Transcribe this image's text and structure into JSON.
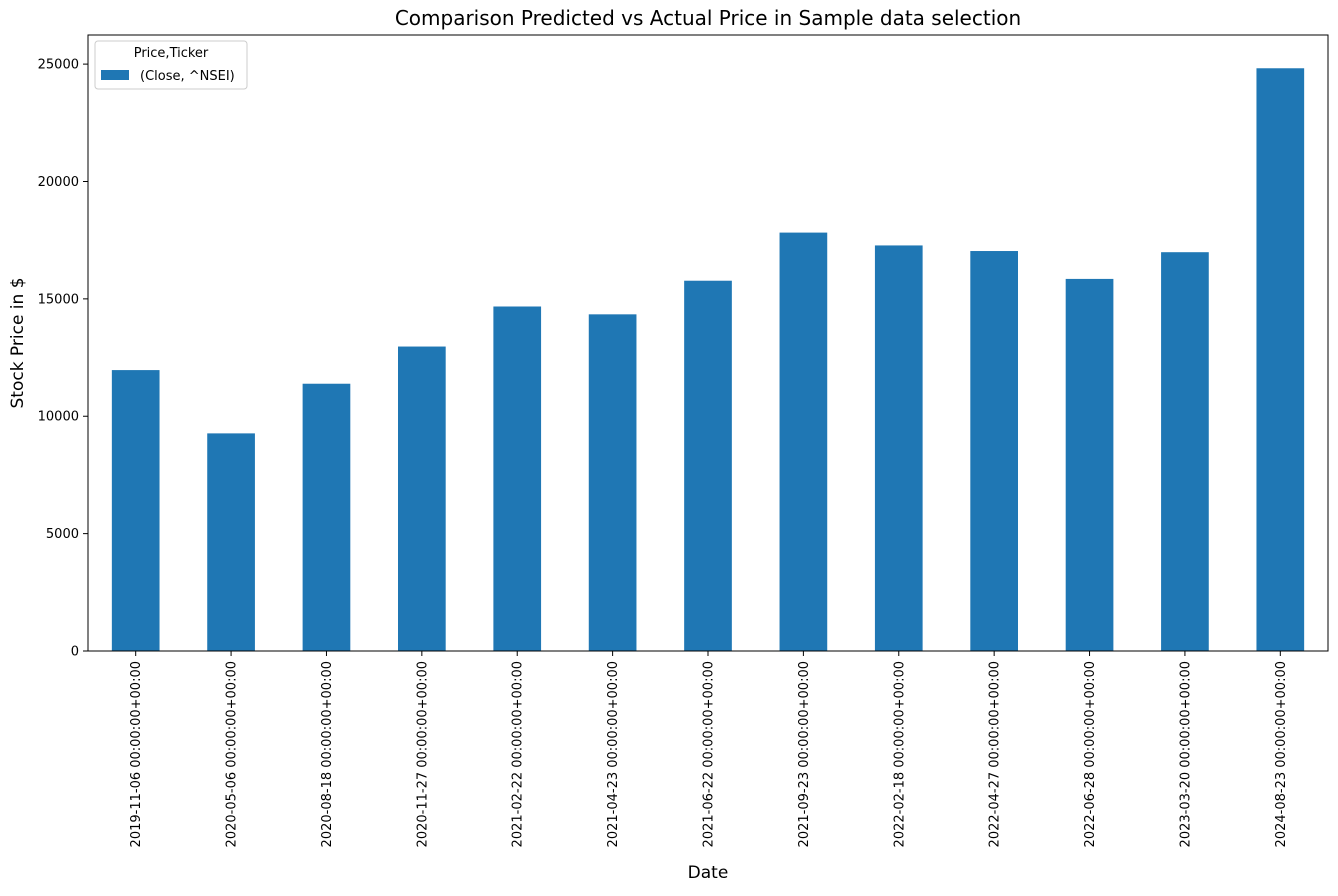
{
  "chart_data": {
    "type": "bar",
    "title": "Comparison Predicted vs Actual Price in Sample data selection",
    "xlabel": "Date",
    "ylabel": "Stock Price in $",
    "categories": [
      "2019-11-06 00:00:00+00:00",
      "2020-05-06 00:00:00+00:00",
      "2020-08-18 00:00:00+00:00",
      "2020-11-27 00:00:00+00:00",
      "2021-02-22 00:00:00+00:00",
      "2021-04-23 00:00:00+00:00",
      "2021-06-22 00:00:00+00:00",
      "2021-09-23 00:00:00+00:00",
      "2022-02-18 00:00:00+00:00",
      "2022-04-27 00:00:00+00:00",
      "2022-06-28 00:00:00+00:00",
      "2023-03-20 00:00:00+00:00",
      "2024-08-23 00:00:00+00:00"
    ],
    "series": [
      {
        "name": "(Close, ^NSEI)",
        "color": "#1f77b4",
        "values": [
          11966,
          9270,
          11385,
          12969,
          14675,
          14341,
          15773,
          17823,
          17276,
          17038,
          15850,
          16988,
          24823
        ]
      }
    ],
    "ylim": [
      0,
      26240
    ],
    "yticks": [
      0,
      5000,
      10000,
      15000,
      20000,
      25000
    ],
    "legend": {
      "title": "Price,Ticker",
      "position": "top-left"
    },
    "grid": false
  }
}
